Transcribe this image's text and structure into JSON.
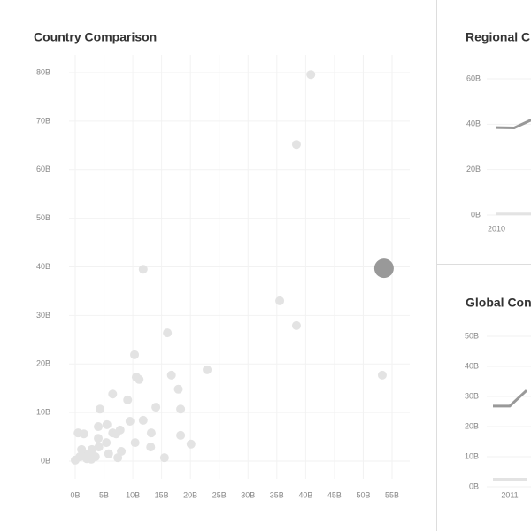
{
  "chart_data": [
    {
      "type": "scatter",
      "title": "Country Comparison",
      "x": [
        40.9,
        38.4,
        11.8,
        35.5,
        38.4,
        16.0,
        53.3,
        22.9,
        10.3,
        10.6,
        11.1,
        16.7,
        17.9,
        9.1,
        6.5,
        14.0,
        18.3,
        4.3,
        11.8,
        9.5,
        4.0,
        5.5,
        7.8,
        13.2,
        18.3,
        0.5,
        1.5,
        6.5,
        7.1,
        10.4,
        13.1,
        20.1,
        15.5,
        4.0,
        5.4,
        8.0,
        7.4,
        5.8,
        0.0,
        0.8,
        1.5,
        2.3,
        2.9,
        3.5,
        1.1,
        2.0,
        4.1,
        2.8
      ],
      "values": [
        79.6,
        65.2,
        39.5,
        33.0,
        27.9,
        26.4,
        17.7,
        18.8,
        21.9,
        17.3,
        16.8,
        17.7,
        14.8,
        12.6,
        13.8,
        11.1,
        10.7,
        10.7,
        8.4,
        8.2,
        7.1,
        7.5,
        6.4,
        5.8,
        5.3,
        5.8,
        5.6,
        5.8,
        5.6,
        3.8,
        2.9,
        3.5,
        0.7,
        4.7,
        3.8,
        2.0,
        0.7,
        1.5,
        0.2,
        0.9,
        1.6,
        1.3,
        2.4,
        0.9,
        2.4,
        0.5,
        2.9,
        0.4
      ],
      "color": "#e3e3e3",
      "highlight": {
        "x": 53.6,
        "y": 39.7,
        "color": "#999999"
      },
      "xlim": [
        0,
        55
      ],
      "ylim": [
        0,
        80
      ],
      "grid": true,
      "xticks": [
        {
          "value": 0,
          "label": "0B"
        },
        {
          "value": 5,
          "label": "5B"
        },
        {
          "value": 10,
          "label": "10B"
        },
        {
          "value": 15,
          "label": "15B"
        },
        {
          "value": 20,
          "label": "20B"
        },
        {
          "value": 25,
          "label": "25B"
        },
        {
          "value": 30,
          "label": "30B"
        },
        {
          "value": 35,
          "label": "35B"
        },
        {
          "value": 40,
          "label": "40B"
        },
        {
          "value": 45,
          "label": "45B"
        },
        {
          "value": 50,
          "label": "50B"
        },
        {
          "value": 55,
          "label": "55B"
        }
      ],
      "yticks": [
        {
          "value": 0,
          "label": "0B"
        },
        {
          "value": 10,
          "label": "10B"
        },
        {
          "value": 20,
          "label": "20B"
        },
        {
          "value": 30,
          "label": "30B"
        },
        {
          "value": 40,
          "label": "40B"
        },
        {
          "value": 50,
          "label": "50B"
        },
        {
          "value": 60,
          "label": "60B"
        },
        {
          "value": 70,
          "label": "70B"
        },
        {
          "value": 80,
          "label": "80B"
        }
      ]
    },
    {
      "type": "line",
      "title": "Regional C",
      "x": [
        2010,
        2010.5,
        2011
      ],
      "series": [
        {
          "color": "#999999",
          "values": [
            38.5,
            38.4,
            42
          ]
        },
        {
          "color": "#e3e3e3",
          "values": [
            0.5,
            0.5,
            0.5
          ]
        }
      ],
      "xlim": [
        2010,
        2011
      ],
      "ylim": [
        0,
        60
      ],
      "xticks": [
        2010
      ],
      "yticks": [
        {
          "value": 0,
          "label": "0B"
        },
        {
          "value": 20,
          "label": "20B"
        },
        {
          "value": 40,
          "label": "40B"
        },
        {
          "value": 60,
          "label": "60B"
        }
      ]
    },
    {
      "type": "line",
      "title": "Global Con",
      "x": [
        2010.5,
        2011,
        2011.5
      ],
      "series": [
        {
          "color": "#999999",
          "values": [
            26.8,
            26.8,
            32
          ]
        },
        {
          "color": "#e3e3e3",
          "values": [
            2.5,
            2.5,
            2.5
          ]
        }
      ],
      "xlim": [
        2010,
        2011
      ],
      "ylim": [
        0,
        50
      ],
      "xticks": [
        2011
      ],
      "yticks": [
        {
          "value": 0,
          "label": "0B"
        },
        {
          "value": 10,
          "label": "10B"
        },
        {
          "value": 20,
          "label": "20B"
        },
        {
          "value": 30,
          "label": "30B"
        },
        {
          "value": 40,
          "label": "40B"
        },
        {
          "value": 50,
          "label": "50B"
        }
      ]
    }
  ]
}
